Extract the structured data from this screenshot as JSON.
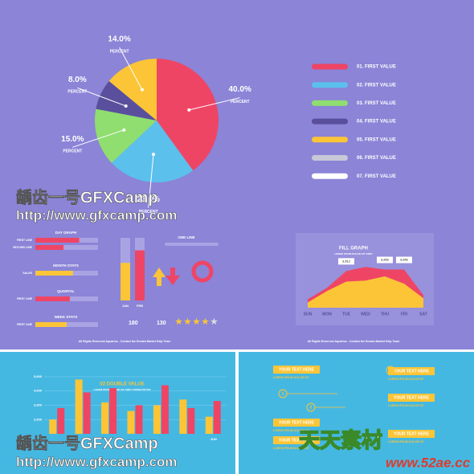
{
  "chart_data": [
    {
      "type": "pie",
      "values": [
        40,
        23,
        15,
        8,
        14
      ],
      "value_labels": [
        "40.0%",
        "23.0%",
        "15.0%",
        "8.0%",
        "14.0%"
      ],
      "sublabel": "PERCENT",
      "colors": [
        "#ef4565",
        "#5bc0eb",
        "#8fde6f",
        "#5a4f9c",
        "#fcc537"
      ],
      "legend": {
        "labels": [
          "01. FIRST VALUE",
          "02. FIRST VALUE",
          "03. FIRST VALUE",
          "04. FIRST VALUE",
          "05. FIRST VALUE",
          "06. FIRST VALUE",
          "07. FIRST VALUE"
        ],
        "colors": [
          "#ef4565",
          "#5bc0eb",
          "#8fde6f",
          "#5a4f9c",
          "#fcc537",
          "#c8c8d8",
          "#ffffff"
        ]
      }
    },
    {
      "type": "area",
      "title": "FILL GRAPH",
      "subtitle": "LOREM IPSUM DOLOR SIT AMET",
      "categories": [
        "SUN",
        "MON",
        "TUE",
        "WED",
        "THU",
        "FRI",
        "SAT"
      ],
      "ylim": [
        0,
        5000
      ],
      "series": [
        {
          "name": "A",
          "color": "#ef4565",
          "values": [
            800,
            1900,
            3512,
            3900,
            3652,
            3652,
            1200
          ],
          "value_labels": [
            null,
            null,
            "3,512",
            null,
            "3,652",
            "3,652",
            null
          ]
        },
        {
          "name": "B",
          "color": "#fcc537",
          "values": [
            500,
            1600,
            2500,
            2600,
            3000,
            2300,
            900
          ]
        }
      ]
    },
    {
      "type": "bar",
      "title": "02 DOUBLE VALUE",
      "subtitle": "LOREM IPSUM DOLOR SIT AMET CONSECTETUR",
      "categories": [
        null,
        null,
        null,
        null,
        null,
        null,
        "JUN"
      ],
      "ylim": [
        1000,
        5500
      ],
      "yticks": [
        {
          "value": 2000,
          "label": "2,000"
        },
        {
          "value": 3000,
          "label": "3,000"
        },
        {
          "value": 4000,
          "label": "4,000"
        },
        {
          "value": 5000,
          "label": "5,000"
        }
      ],
      "series": [
        {
          "name": "A",
          "color": "#fcc537",
          "values": [
            2000,
            4800,
            3200,
            2600,
            3000,
            3400,
            2200
          ]
        },
        {
          "name": "B",
          "color": "#ef4565",
          "values": [
            2800,
            3900,
            4200,
            3000,
            4400,
            2800,
            3300
          ]
        }
      ]
    }
  ],
  "panels": {
    "bars": [
      {
        "title": "DAY GRAPH",
        "rows": [
          {
            "label": "FIRST LINE",
            "value": 70
          },
          {
            "label": "SECOND LINE",
            "value": 45
          }
        ]
      },
      {
        "title": "MONTH STATS",
        "rows": [
          {
            "label": "SALES",
            "value": 60
          }
        ]
      },
      {
        "title": "QUARTAL",
        "rows": [
          {
            "label": "FIRST LINE",
            "value": 55
          }
        ]
      },
      {
        "title": "WEEK STATS",
        "rows": [
          {
            "label": "FIRST LINE",
            "value": 50
          }
        ]
      }
    ],
    "month_bars": {
      "categories": [
        "JAN",
        "FEB"
      ],
      "values": [
        60,
        80
      ]
    },
    "one_line": "ONE LINE",
    "likes": [
      "180",
      "130"
    ]
  },
  "footer": [
    "All Rights Reserved Aquarius - Contact the Envato Market Help Team",
    "All Rights Reserved Aquarius - Contact the Envato Market Help Team"
  ],
  "timeline": {
    "boxes": [
      "YOUR TEXT HERE",
      "YOUR TEXT HERE",
      "YOUR TEXT HERE",
      "YOUR TEXT HERE",
      "YOUR TEXT HERE",
      "YOUR TEXT HERE"
    ],
    "caption": "LOREM IPSUM DOLOR SIT",
    "steps": [
      "1",
      "2",
      "3"
    ]
  },
  "watermarks": [
    "龋齿一号GFXCamp",
    "http://www.gfxcamp.com",
    "天天素材",
    "www.52ae.cc"
  ]
}
